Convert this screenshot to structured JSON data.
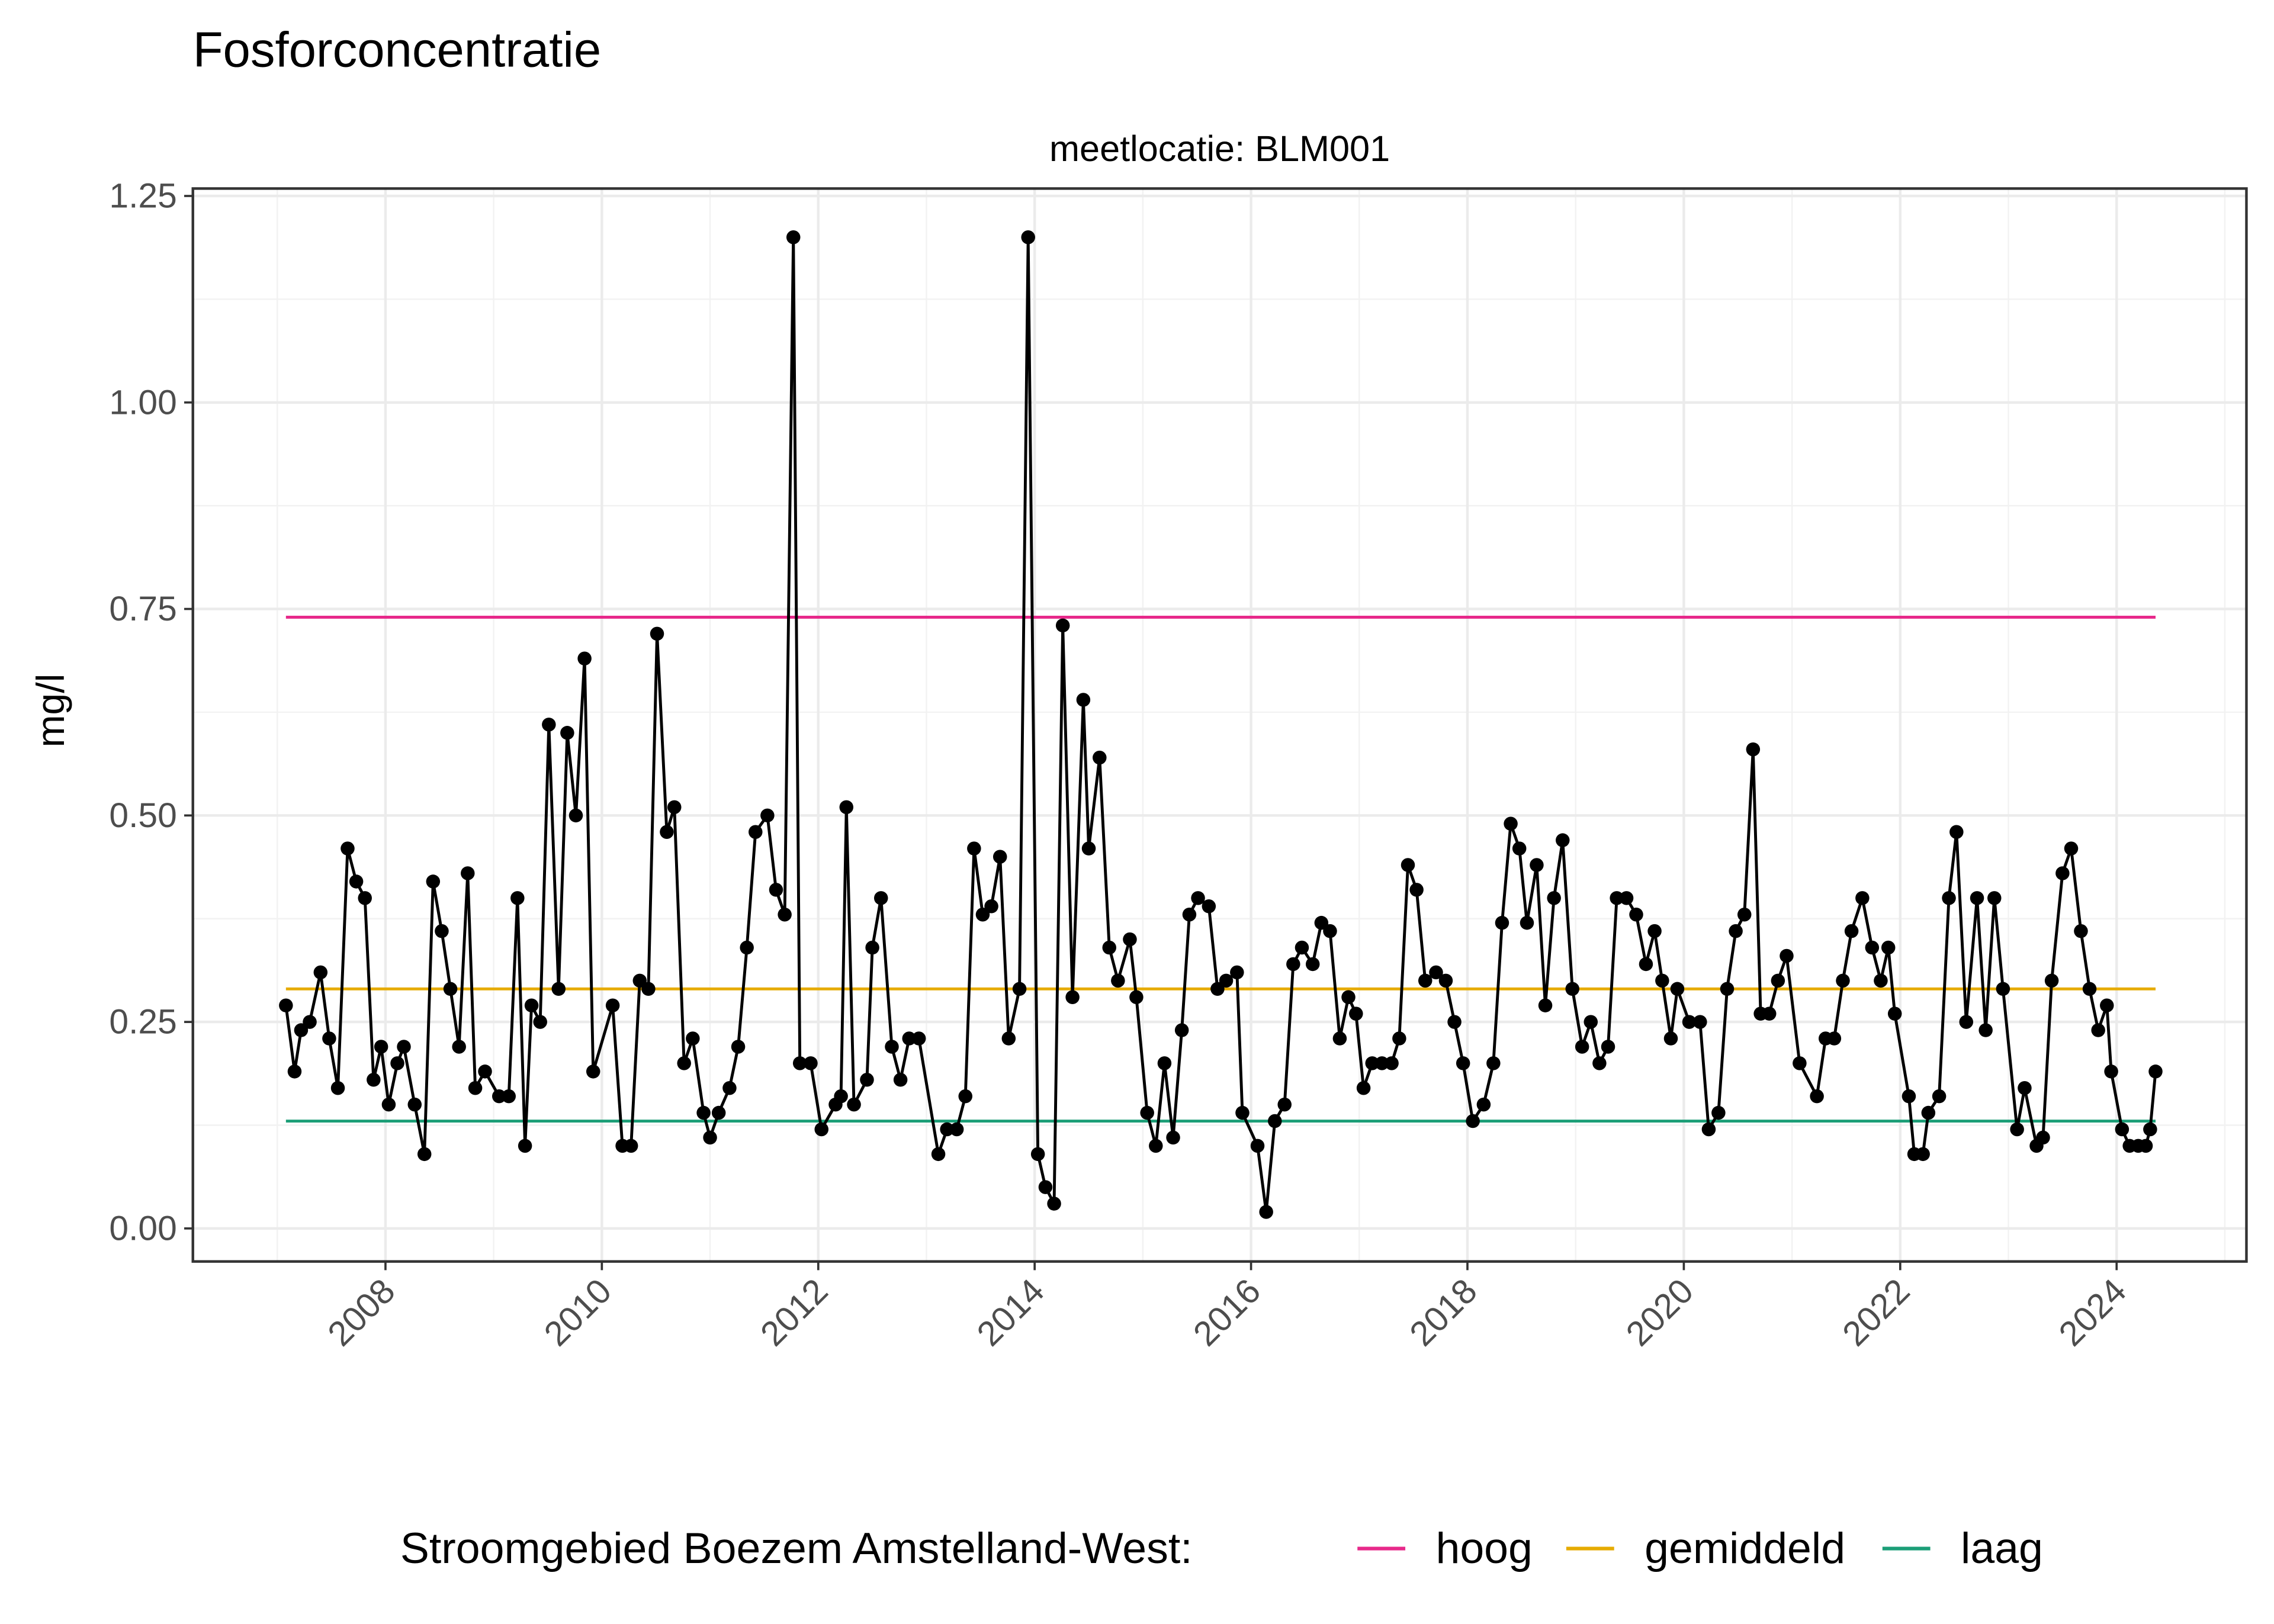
{
  "chart_data": {
    "type": "line",
    "title": "Fosforconcentratie",
    "subtitle": "meetlocatie: BLM001",
    "y_label": "mg/l",
    "point_color": "#000000",
    "grid": true,
    "legend_position": "bottom",
    "legend_title": "Stroomgebied Boezem Amstelland-West:",
    "xlim": [
      2006.22,
      2025.2
    ],
    "xticks": [
      2008,
      2010,
      2012,
      2014,
      2016,
      2018,
      2020,
      2022,
      2024
    ],
    "ylim": [
      -0.04,
      1.259
    ],
    "yticks": [
      {
        "value": 0,
        "label": "0.00"
      },
      0.25,
      {
        "value": 0.5,
        "label": "0.50"
      },
      0.75,
      {
        "value": 1,
        "label": "1.00"
      },
      1.25
    ],
    "x": [
      2007.08,
      2007.16,
      2007.22,
      2007.3,
      2007.4,
      2007.48,
      2007.56,
      2007.65,
      2007.73,
      2007.81,
      2007.89,
      2007.96,
      2008.03,
      2008.11,
      2008.17,
      2008.27,
      2008.36,
      2008.44,
      2008.52,
      2008.6,
      2008.68,
      2008.76,
      2008.83,
      2008.92,
      2009.05,
      2009.14,
      2009.22,
      2009.29,
      2009.35,
      2009.43,
      2009.51,
      2009.6,
      2009.68,
      2009.76,
      2009.84,
      2009.92,
      2010.1,
      2010.19,
      2010.27,
      2010.35,
      2010.43,
      2010.51,
      2010.6,
      2010.67,
      2010.76,
      2010.84,
      2010.94,
      2011.0,
      2011.08,
      2011.18,
      2011.26,
      2011.34,
      2011.42,
      2011.53,
      2011.61,
      2011.69,
      2011.77,
      2011.83,
      2011.93,
      2012.03,
      2012.16,
      2012.21,
      2012.26,
      2012.33,
      2012.45,
      2012.5,
      2012.58,
      2012.68,
      2012.76,
      2012.84,
      2012.93,
      2013.11,
      2013.19,
      2013.28,
      2013.36,
      2013.44,
      2013.52,
      2013.6,
      2013.68,
      2013.76,
      2013.86,
      2013.94,
      2014.03,
      2014.1,
      2014.18,
      2014.26,
      2014.35,
      2014.45,
      2014.5,
      2014.6,
      2014.69,
      2014.77,
      2014.88,
      2014.94,
      2015.04,
      2015.12,
      2015.2,
      2015.28,
      2015.36,
      2015.43,
      2015.51,
      2015.61,
      2015.69,
      2015.77,
      2015.87,
      2015.92,
      2016.06,
      2016.14,
      2016.22,
      2016.31,
      2016.39,
      2016.47,
      2016.57,
      2016.65,
      2016.73,
      2016.82,
      2016.9,
      2016.97,
      2017.04,
      2017.12,
      2017.21,
      2017.3,
      2017.37,
      2017.45,
      2017.53,
      2017.61,
      2017.71,
      2017.8,
      2017.88,
      2017.96,
      2018.05,
      2018.15,
      2018.24,
      2018.32,
      2018.4,
      2018.48,
      2018.55,
      2018.64,
      2018.72,
      2018.8,
      2018.88,
      2018.97,
      2019.06,
      2019.14,
      2019.22,
      2019.3,
      2019.38,
      2019.47,
      2019.56,
      2019.65,
      2019.73,
      2019.8,
      2019.88,
      2019.94,
      2020.05,
      2020.15,
      2020.23,
      2020.32,
      2020.4,
      2020.48,
      2020.56,
      2020.64,
      2020.71,
      2020.79,
      2020.87,
      2020.95,
      2021.07,
      2021.23,
      2021.31,
      2021.39,
      2021.47,
      2021.55,
      2021.65,
      2021.74,
      2021.82,
      2021.89,
      2021.95,
      2022.08,
      2022.13,
      2022.21,
      2022.26,
      2022.36,
      2022.45,
      2022.52,
      2022.61,
      2022.71,
      2022.79,
      2022.87,
      2022.95,
      2023.08,
      2023.15,
      2023.26,
      2023.32,
      2023.4,
      2023.5,
      2023.58,
      2023.67,
      2023.75,
      2023.83,
      2023.91,
      2023.95,
      2024.05,
      2024.12,
      2024.2,
      2024.27,
      2024.31,
      2024.36
    ],
    "values": [
      0.27,
      0.19,
      0.24,
      0.25,
      0.31,
      0.23,
      0.17,
      0.46,
      0.42,
      0.4,
      0.18,
      0.22,
      0.15,
      0.2,
      0.22,
      0.15,
      0.09,
      0.42,
      0.36,
      0.29,
      0.22,
      0.43,
      0.17,
      0.19,
      0.16,
      0.16,
      0.4,
      0.1,
      0.27,
      0.25,
      0.61,
      0.29,
      0.6,
      0.5,
      0.69,
      0.19,
      0.27,
      0.1,
      0.1,
      0.3,
      0.29,
      0.72,
      0.48,
      0.51,
      0.2,
      0.23,
      0.14,
      0.11,
      0.14,
      0.17,
      0.22,
      0.34,
      0.48,
      0.5,
      0.41,
      0.38,
      1.2,
      0.2,
      0.2,
      0.12,
      0.15,
      0.16,
      0.51,
      0.15,
      0.18,
      0.34,
      0.4,
      0.22,
      0.18,
      0.23,
      0.23,
      0.09,
      0.12,
      0.12,
      0.16,
      0.46,
      0.38,
      0.39,
      0.45,
      0.23,
      0.29,
      1.2,
      0.09,
      0.05,
      0.03,
      0.73,
      0.28,
      0.64,
      0.46,
      0.57,
      0.34,
      0.3,
      0.35,
      0.28,
      0.14,
      0.1,
      0.2,
      0.11,
      0.24,
      0.38,
      0.4,
      0.39,
      0.29,
      0.3,
      0.31,
      0.14,
      0.1,
      0.02,
      0.13,
      0.15,
      0.32,
      0.34,
      0.32,
      0.37,
      0.36,
      0.23,
      0.28,
      0.26,
      0.17,
      0.2,
      0.2,
      0.2,
      0.23,
      0.44,
      0.41,
      0.3,
      0.31,
      0.3,
      0.25,
      0.2,
      0.13,
      0.15,
      0.2,
      0.37,
      0.49,
      0.46,
      0.37,
      0.44,
      0.27,
      0.4,
      0.47,
      0.29,
      0.22,
      0.25,
      0.2,
      0.22,
      0.4,
      0.4,
      0.38,
      0.32,
      0.36,
      0.3,
      0.23,
      0.29,
      0.25,
      0.25,
      0.12,
      0.14,
      0.29,
      0.36,
      0.38,
      0.58,
      0.26,
      0.26,
      0.3,
      0.33,
      0.2,
      0.16,
      0.23,
      0.23,
      0.3,
      0.36,
      0.4,
      0.34,
      0.3,
      0.34,
      0.26,
      0.16,
      0.09,
      0.09,
      0.14,
      0.16,
      0.4,
      0.48,
      0.25,
      0.4,
      0.24,
      0.4,
      0.29,
      0.12,
      0.17,
      0.1,
      0.11,
      0.3,
      0.43,
      0.46,
      0.36,
      0.29,
      0.24,
      0.27,
      0.19,
      0.12,
      0.1,
      0.1,
      0.1,
      0.12,
      0.19
    ],
    "reference_lines": [
      {
        "name": "hoog",
        "color": "#e7298a",
        "x": [
          2007.08,
          2024.36
        ],
        "values": [
          0.74,
          0.74
        ]
      },
      {
        "name": "gemiddeld",
        "color": "#e6ab02",
        "x": [
          2007.08,
          2024.36
        ],
        "values": [
          0.29,
          0.29
        ]
      },
      {
        "name": "laag",
        "color": "#1b9e77",
        "x": [
          2007.08,
          2024.36
        ],
        "values": [
          0.13,
          0.13
        ]
      }
    ]
  }
}
